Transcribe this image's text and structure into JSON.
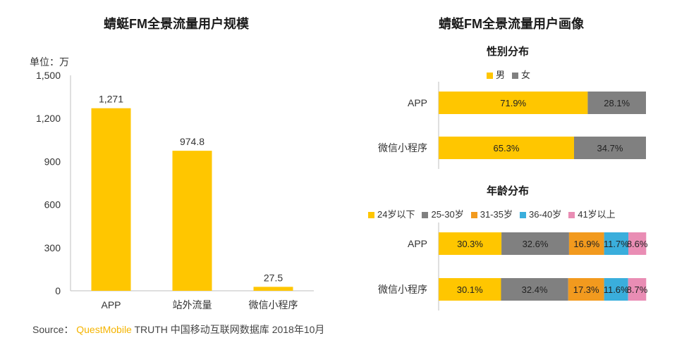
{
  "left_title": "蜻蜓FM全景流量用户规模",
  "right_title": "蜻蜓FM全景流量用户画像",
  "unit_label": "单位：万",
  "source": {
    "prefix": "Source：",
    "brand": "QuestMobile",
    "suffix": "TRUTH 中国移动互联网数据库 2018年10月"
  },
  "colors": {
    "yellow": "#FFC600",
    "gray": "#808080",
    "orange": "#F29A1E",
    "blue": "#3AAEDC",
    "pink": "#E98DB4",
    "axis": "#BFBFBF"
  },
  "chart_data": [
    {
      "type": "bar",
      "title": "蜻蜓FM全景流量用户规模",
      "ylabel": "单位：万",
      "categories": [
        "APP",
        "站外流量",
        "微信小程序"
      ],
      "values": [
        1271,
        974.8,
        27.5
      ],
      "data_labels": [
        "1,271",
        "974.8",
        "27.5"
      ],
      "ylim": [
        0,
        1500
      ],
      "yticks": [
        0,
        300,
        600,
        900,
        1200,
        1500
      ],
      "ytick_labels": [
        "0",
        "300",
        "600",
        "900",
        "1,200",
        "1,500"
      ],
      "grid": false
    },
    {
      "type": "bar",
      "orientation": "horizontal-stacked-100",
      "title": "性别分布",
      "categories": [
        "APP",
        "微信小程序"
      ],
      "series": [
        {
          "name": "男",
          "color": "#FFC600",
          "values": [
            71.9,
            65.3
          ],
          "labels": [
            "71.9%",
            "65.3%"
          ]
        },
        {
          "name": "女",
          "color": "#808080",
          "values": [
            28.1,
            34.7
          ],
          "labels": [
            "28.1%",
            "34.7%"
          ]
        }
      ],
      "legend": "top"
    },
    {
      "type": "bar",
      "orientation": "horizontal-stacked-100",
      "title": "年龄分布",
      "categories": [
        "APP",
        "微信小程序"
      ],
      "series": [
        {
          "name": "24岁以下",
          "color": "#FFC600",
          "values": [
            30.3,
            30.1
          ],
          "labels": [
            "30.3%",
            "30.1%"
          ]
        },
        {
          "name": "25-30岁",
          "color": "#808080",
          "values": [
            32.6,
            32.4
          ],
          "labels": [
            "32.6%",
            "32.4%"
          ]
        },
        {
          "name": "31-35岁",
          "color": "#F29A1E",
          "values": [
            16.9,
            17.3
          ],
          "labels": [
            "16.9%",
            "17.3%"
          ]
        },
        {
          "name": "36-40岁",
          "color": "#3AAEDC",
          "values": [
            11.7,
            11.6
          ],
          "labels": [
            "11.7%",
            "11.6%"
          ]
        },
        {
          "name": "41岁以上",
          "color": "#E98DB4",
          "values": [
            8.6,
            8.7
          ],
          "labels": [
            "8.6%",
            "8.7%"
          ]
        }
      ],
      "legend": "top"
    }
  ]
}
